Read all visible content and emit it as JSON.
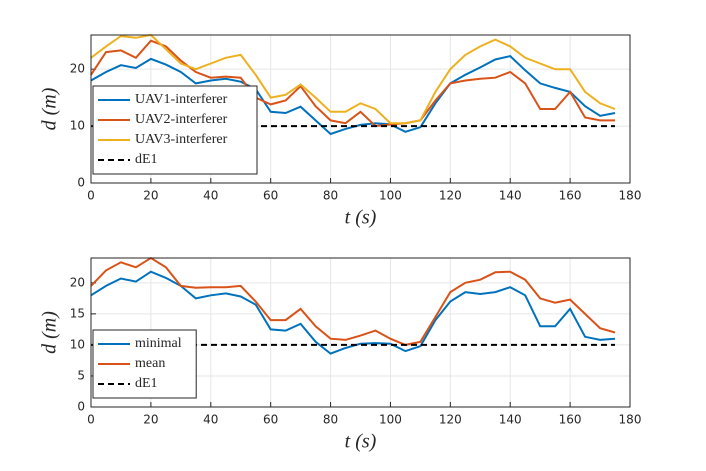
{
  "chart_data": [
    {
      "type": "line",
      "xlabel": "t (s)",
      "ylabel": "d (m)",
      "x": [
        0,
        5,
        10,
        15,
        20,
        25,
        30,
        35,
        40,
        45,
        50,
        55,
        60,
        65,
        70,
        75,
        80,
        85,
        90,
        95,
        100,
        105,
        110,
        115,
        120,
        125,
        130,
        135,
        140,
        145,
        150,
        155,
        160,
        165,
        170,
        175
      ],
      "series": [
        {
          "name": "UAV1-interferer",
          "color": "#0072bd",
          "values": [
            18,
            19.5,
            20.7,
            20.2,
            21.8,
            20.8,
            19.5,
            17.5,
            18,
            18.3,
            17.8,
            16.5,
            12.5,
            12.3,
            13.4,
            11,
            8.6,
            9.5,
            10.2,
            10.5,
            10.3,
            9,
            9.8,
            14,
            17.5,
            19,
            20.3,
            21.7,
            22.3,
            19.8,
            17.5,
            16.7,
            16,
            13.5,
            11.8,
            12.3
          ]
        },
        {
          "name": "UAV2-interferer",
          "color": "#d95319",
          "values": [
            19,
            23,
            23.3,
            22,
            25,
            24,
            21.5,
            19.5,
            18.5,
            18.7,
            18.5,
            15,
            13.8,
            14.5,
            17,
            13.5,
            11,
            10.5,
            12.5,
            10,
            10.3,
            10.5,
            11,
            14.5,
            17.5,
            18,
            18.3,
            18.5,
            19.5,
            17.5,
            13,
            13,
            16,
            11.5,
            11,
            11
          ]
        },
        {
          "name": "UAV3-interferer",
          "color": "#edb120",
          "values": [
            22,
            24,
            25.8,
            25.5,
            26,
            23.5,
            21,
            20,
            21,
            22,
            22.5,
            19,
            15,
            15.5,
            17.3,
            15,
            12.5,
            12.5,
            14,
            13,
            10.5,
            10.5,
            11,
            16,
            20,
            22.5,
            24,
            25.2,
            24,
            22,
            21,
            20,
            20,
            16,
            14,
            13
          ]
        },
        {
          "name": "dE1",
          "color": "#000000",
          "line_style": "dashed",
          "values": [
            10,
            10,
            10,
            10,
            10,
            10,
            10,
            10,
            10,
            10,
            10,
            10,
            10,
            10,
            10,
            10,
            10,
            10,
            10,
            10,
            10,
            10,
            10,
            10,
            10,
            10,
            10,
            10,
            10,
            10,
            10,
            10,
            10,
            10,
            10,
            10
          ]
        }
      ],
      "xlim": [
        0,
        180
      ],
      "xticks": [
        0,
        20,
        40,
        60,
        80,
        100,
        120,
        140,
        160,
        180
      ],
      "ylim": [
        0,
        26
      ],
      "yticks": [
        0,
        10,
        20
      ],
      "grid": true,
      "legend": "lower left"
    },
    {
      "type": "line",
      "xlabel": "t (s)",
      "ylabel": "d (m)",
      "x": [
        0,
        5,
        10,
        15,
        20,
        25,
        30,
        35,
        40,
        45,
        50,
        55,
        60,
        65,
        70,
        75,
        80,
        85,
        90,
        95,
        100,
        105,
        110,
        115,
        120,
        125,
        130,
        135,
        140,
        145,
        150,
        155,
        160,
        165,
        170,
        175
      ],
      "series": [
        {
          "name": "minimal",
          "color": "#0072bd",
          "values": [
            18,
            19.5,
            20.7,
            20.2,
            21.8,
            20.8,
            19.5,
            17.5,
            18,
            18.3,
            17.8,
            16.5,
            12.5,
            12.3,
            13.4,
            10.5,
            8.6,
            9.5,
            10.2,
            10.3,
            10.2,
            9,
            9.8,
            14,
            17,
            18.5,
            18.2,
            18.5,
            19.3,
            18,
            13,
            13,
            15.8,
            11.3,
            10.8,
            11
          ]
        },
        {
          "name": "mean",
          "color": "#d95319",
          "values": [
            19.5,
            22,
            23.3,
            22.5,
            24,
            22.5,
            19.5,
            19.2,
            19.3,
            19.3,
            19.5,
            17,
            14,
            14,
            15.8,
            13,
            11,
            10.8,
            11.5,
            12.3,
            11,
            10,
            10.5,
            14.5,
            18.5,
            20,
            20.5,
            21.7,
            21.8,
            20.5,
            17.5,
            16.8,
            17.3,
            15,
            12.7,
            12
          ]
        },
        {
          "name": "dE1",
          "color": "#000000",
          "line_style": "dashed",
          "values": [
            10,
            10,
            10,
            10,
            10,
            10,
            10,
            10,
            10,
            10,
            10,
            10,
            10,
            10,
            10,
            10,
            10,
            10,
            10,
            10,
            10,
            10,
            10,
            10,
            10,
            10,
            10,
            10,
            10,
            10,
            10,
            10,
            10,
            10,
            10,
            10
          ]
        }
      ],
      "xlim": [
        0,
        180
      ],
      "xticks": [
        0,
        20,
        40,
        60,
        80,
        100,
        120,
        140,
        160,
        180
      ],
      "ylim": [
        0,
        24
      ],
      "yticks": [
        0,
        5,
        10,
        15,
        20
      ],
      "grid": true,
      "legend": "lower left"
    }
  ]
}
